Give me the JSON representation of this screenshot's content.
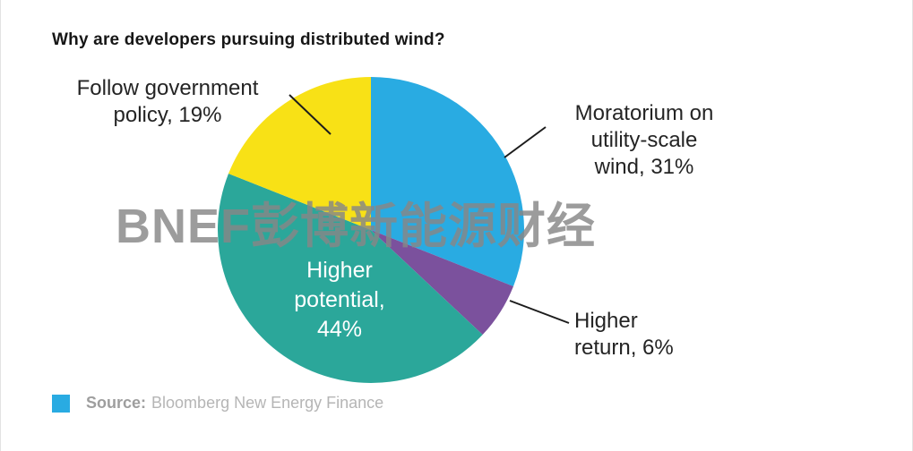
{
  "title": "Why are developers pursuing distributed wind?",
  "watermark": "BNEF彭博新能源财经",
  "source": {
    "label": "Source:",
    "text": "Bloomberg New Energy Finance",
    "swatch_color": "#29ABE2"
  },
  "chart_data": {
    "type": "pie",
    "title": "Why are developers pursuing distributed wind?",
    "values_are_percent": true,
    "start_angle_deg": -90,
    "direction": "clockwise",
    "legend_position": "none",
    "slices": [
      {
        "label": "Moratorium on utility-scale wind",
        "value": 31,
        "color": "#29ABE2",
        "callout": "Moratorium on\nutility-scale\nwind, 31%",
        "label_placement": "outside-right"
      },
      {
        "label": "Higher return",
        "value": 6,
        "color": "#7B519D",
        "callout": "Higher\nreturn, 6%",
        "label_placement": "outside-lower-right"
      },
      {
        "label": "Higher potential",
        "value": 44,
        "color": "#2BA79A",
        "callout": "Higher\npotential,\n44%",
        "label_placement": "inside"
      },
      {
        "label": "Follow government policy",
        "value": 19,
        "color": "#F8E116",
        "callout": "Follow government\npolicy, 19%",
        "label_placement": "outside-upper-left"
      }
    ]
  }
}
